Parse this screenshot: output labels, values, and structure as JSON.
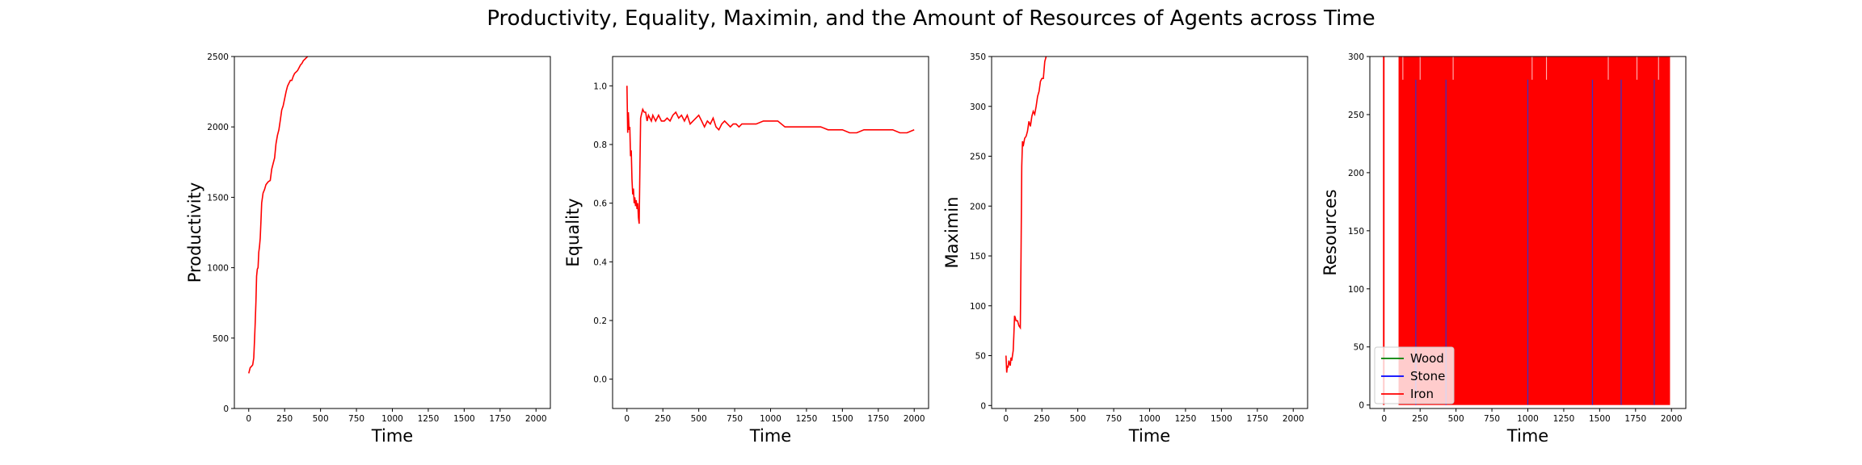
{
  "figure": {
    "title": "Productivity, Equality, Maximin, and the Amount of Resources of Agents across Time"
  },
  "chart_data": [
    {
      "type": "line",
      "title": "",
      "xlabel": "Time",
      "ylabel": "Productivity",
      "xlim": [
        -100,
        2100
      ],
      "ylim": [
        0,
        2500
      ],
      "xticks": [
        0,
        250,
        500,
        750,
        1000,
        1250,
        1500,
        1750,
        2000
      ],
      "yticks": [
        0,
        500,
        1000,
        1500,
        2000,
        2500
      ],
      "series": [
        {
          "color": "#ff0000",
          "x": [
            0,
            10,
            20,
            28,
            35,
            40,
            45,
            50,
            55,
            60,
            65,
            70,
            75,
            80,
            85,
            90,
            100,
            110,
            120,
            135,
            150,
            160,
            170,
            180,
            190,
            200,
            210,
            220,
            230,
            240,
            250,
            260,
            270,
            280,
            290,
            300,
            310,
            320,
            330,
            340,
            350,
            360,
            370,
            380,
            390,
            400,
            410
          ],
          "y": [
            250,
            290,
            300,
            310,
            360,
            480,
            610,
            760,
            940,
            990,
            1000,
            1110,
            1150,
            1210,
            1330,
            1460,
            1530,
            1555,
            1590,
            1610,
            1620,
            1700,
            1740,
            1780,
            1880,
            1940,
            1980,
            2050,
            2120,
            2150,
            2200,
            2250,
            2290,
            2310,
            2330,
            2330,
            2360,
            2380,
            2390,
            2400,
            2420,
            2440,
            2450,
            2470,
            2480,
            2490,
            2500
          ]
        }
      ]
    },
    {
      "type": "line",
      "title": "",
      "xlabel": "Time",
      "ylabel": "Equality",
      "xlim": [
        -100,
        2100
      ],
      "ylim": [
        -0.1,
        1.1
      ],
      "xticks": [
        0,
        250,
        500,
        750,
        1000,
        1250,
        1500,
        1750,
        2000
      ],
      "yticks": [
        0.0,
        0.2,
        0.4,
        0.6,
        0.8,
        1.0
      ],
      "series": [
        {
          "color": "#ff0000",
          "x": [
            0,
            5,
            10,
            15,
            20,
            25,
            30,
            35,
            40,
            45,
            50,
            55,
            60,
            65,
            70,
            75,
            80,
            85,
            90,
            95,
            100,
            110,
            120,
            130,
            140,
            150,
            160,
            170,
            180,
            190,
            200,
            220,
            240,
            260,
            280,
            300,
            320,
            340,
            360,
            380,
            400,
            420,
            440,
            460,
            480,
            500,
            520,
            540,
            560,
            580,
            600,
            620,
            640,
            660,
            680,
            700,
            720,
            740,
            760,
            780,
            800,
            850,
            900,
            950,
            1000,
            1050,
            1100,
            1150,
            1200,
            1250,
            1300,
            1350,
            1400,
            1450,
            1500,
            1550,
            1600,
            1650,
            1700,
            1750,
            1800,
            1850,
            1900,
            1950,
            2000
          ],
          "y": [
            1.0,
            0.84,
            0.91,
            0.85,
            0.86,
            0.76,
            0.78,
            0.68,
            0.63,
            0.65,
            0.6,
            0.62,
            0.59,
            0.61,
            0.58,
            0.6,
            0.55,
            0.53,
            0.72,
            0.89,
            0.9,
            0.92,
            0.91,
            0.91,
            0.88,
            0.9,
            0.89,
            0.88,
            0.9,
            0.89,
            0.88,
            0.9,
            0.88,
            0.88,
            0.89,
            0.88,
            0.9,
            0.91,
            0.89,
            0.9,
            0.88,
            0.9,
            0.87,
            0.88,
            0.89,
            0.9,
            0.88,
            0.86,
            0.88,
            0.87,
            0.89,
            0.86,
            0.85,
            0.87,
            0.88,
            0.87,
            0.86,
            0.87,
            0.87,
            0.86,
            0.87,
            0.87,
            0.87,
            0.88,
            0.88,
            0.88,
            0.86,
            0.86,
            0.86,
            0.86,
            0.86,
            0.86,
            0.85,
            0.85,
            0.85,
            0.84,
            0.84,
            0.85,
            0.85,
            0.85,
            0.85,
            0.85,
            0.84,
            0.84,
            0.85
          ]
        }
      ]
    },
    {
      "type": "line",
      "title": "",
      "xlabel": "Time",
      "ylabel": "Maximin",
      "xlim": [
        -100,
        2100
      ],
      "ylim": [
        -3,
        350
      ],
      "xticks": [
        0,
        250,
        500,
        750,
        1000,
        1250,
        1500,
        1750,
        2000
      ],
      "yticks": [
        0,
        50,
        100,
        150,
        200,
        250,
        300,
        350
      ],
      "series": [
        {
          "color": "#ff0000",
          "x": [
            0,
            5,
            10,
            15,
            20,
            25,
            30,
            35,
            40,
            45,
            50,
            55,
            60,
            65,
            70,
            80,
            90,
            100,
            105,
            110,
            115,
            120,
            130,
            140,
            150,
            160,
            170,
            180,
            190,
            200,
            210,
            220,
            230,
            240,
            250,
            260,
            270,
            280
          ],
          "y": [
            50,
            33,
            40,
            38,
            45,
            42,
            40,
            48,
            45,
            50,
            55,
            70,
            90,
            88,
            85,
            85,
            80,
            78,
            150,
            240,
            265,
            260,
            268,
            270,
            275,
            285,
            280,
            290,
            295,
            292,
            300,
            310,
            315,
            325,
            328,
            328,
            345,
            350
          ]
        }
      ]
    },
    {
      "type": "line",
      "title": "",
      "xlabel": "Time",
      "ylabel": "Resources",
      "xlim": [
        -100,
        2100
      ],
      "ylim": [
        -3,
        300
      ],
      "xticks": [
        0,
        250,
        500,
        750,
        1000,
        1250,
        1500,
        1750,
        2000
      ],
      "yticks": [
        0,
        50,
        100,
        150,
        200,
        250,
        300
      ],
      "legend_position": "lower-left",
      "series": [
        {
          "name": "Wood",
          "color": "#008000"
        },
        {
          "name": "Stone",
          "color": "#0000ff"
        },
        {
          "name": "Iron",
          "color": "#ff0000"
        }
      ],
      "iron_filled_span": [
        100,
        1990
      ],
      "iron_spike_x": [
        -3
      ],
      "stone_spike_x": [
        220,
        430,
        1000,
        1450,
        1650,
        1880
      ]
    }
  ]
}
